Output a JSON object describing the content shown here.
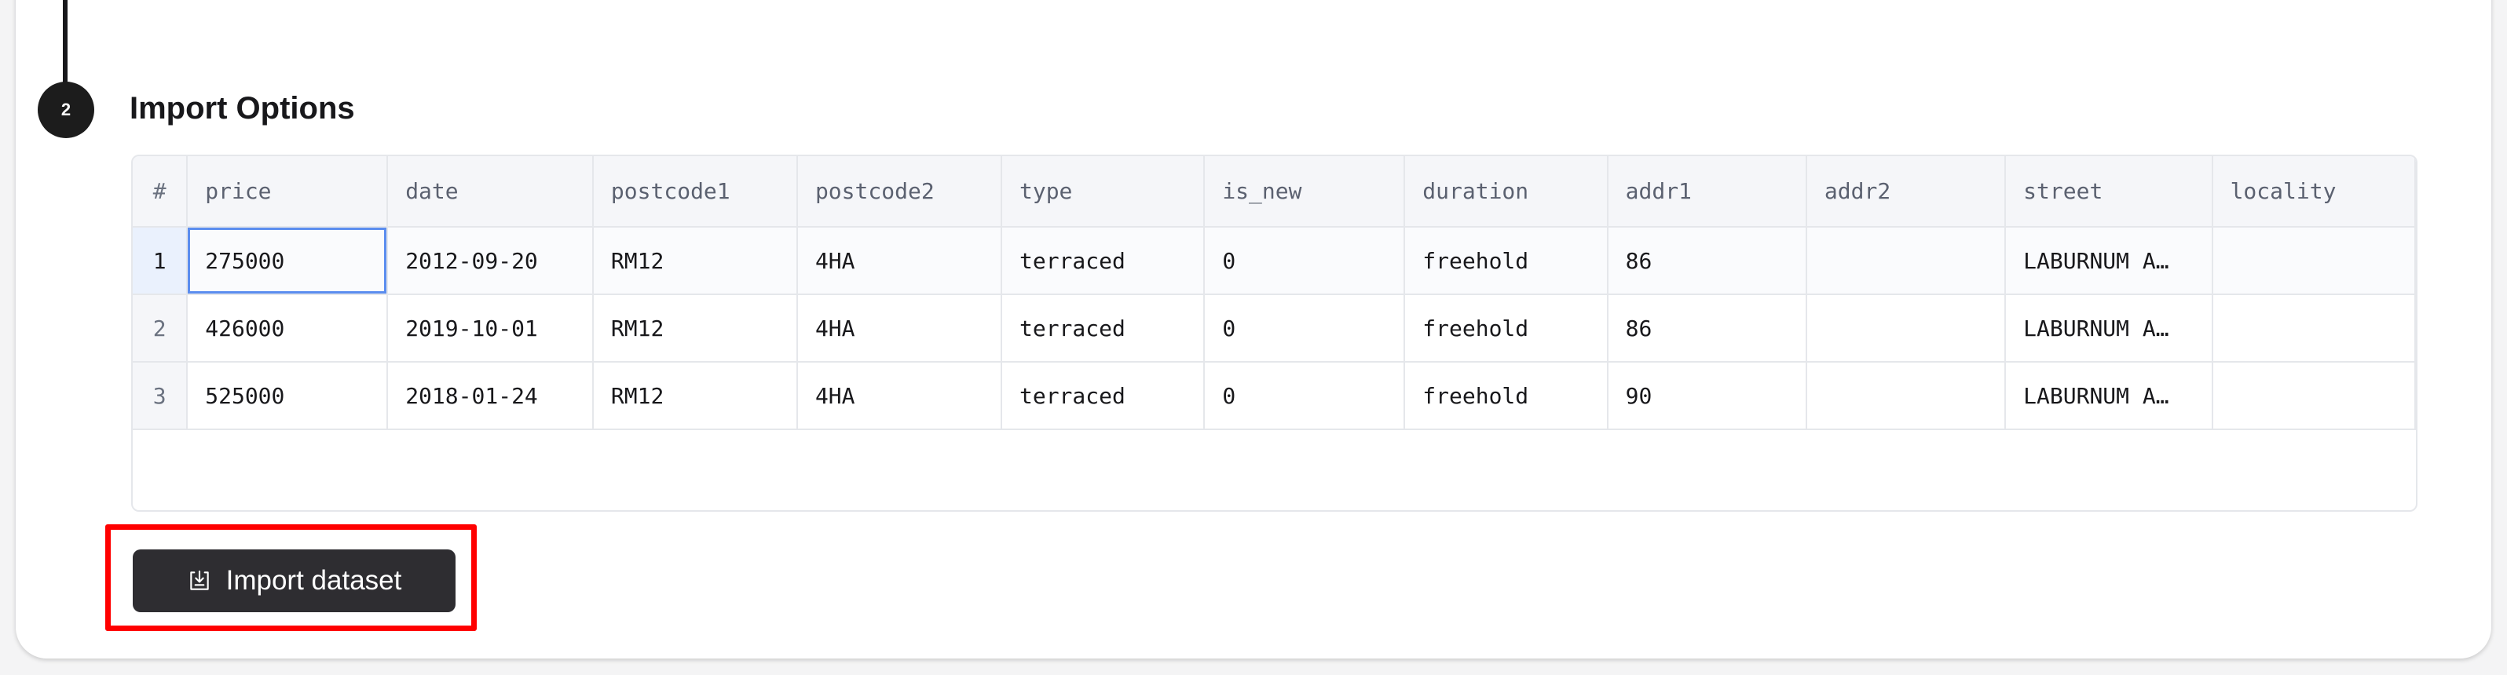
{
  "step": {
    "number": "2",
    "title": "Import Options"
  },
  "table": {
    "index_header": "#",
    "columns": [
      "price",
      "date",
      "postcode1",
      "postcode2",
      "type",
      "is_new",
      "duration",
      "addr1",
      "addr2",
      "street",
      "locality"
    ],
    "rows": [
      {
        "index": "1",
        "cells": [
          "275000",
          "2012-09-20",
          "RM12",
          "4HA",
          "terraced",
          "0",
          "freehold",
          "86",
          "",
          "LABURNUM A…",
          ""
        ]
      },
      {
        "index": "2",
        "cells": [
          "426000",
          "2019-10-01",
          "RM12",
          "4HA",
          "terraced",
          "0",
          "freehold",
          "86",
          "",
          "LABURNUM A…",
          ""
        ]
      },
      {
        "index": "3",
        "cells": [
          "525000",
          "2018-01-24",
          "RM12",
          "4HA",
          "terraced",
          "0",
          "freehold",
          "90",
          "",
          "LABURNUM A…",
          ""
        ]
      }
    ]
  },
  "import_button": {
    "label": "Import dataset",
    "icon": "import-tray-icon"
  },
  "colors": {
    "button_bg": "#2e2d31",
    "selection": "#5b8def",
    "highlight": "#ff0000"
  }
}
